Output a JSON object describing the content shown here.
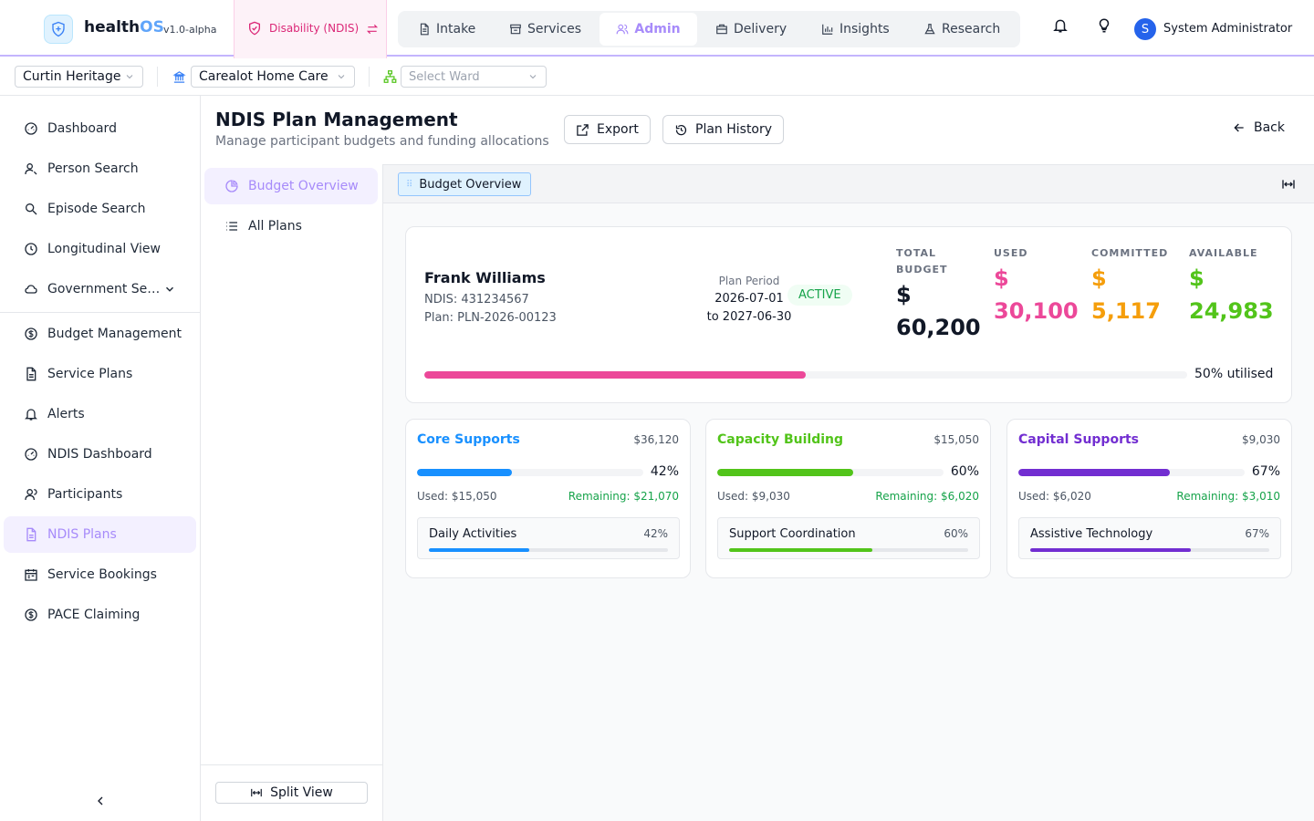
{
  "brand": {
    "name_prefix": "health",
    "name_suffix": "OS",
    "version": "v1.0-alpha"
  },
  "mode": {
    "label": "Disability (NDIS)",
    "switch_icon": "swap-icon"
  },
  "nav": {
    "tabs": [
      {
        "label": "Intake",
        "icon": "document-icon"
      },
      {
        "label": "Services",
        "icon": "store-icon"
      },
      {
        "label": "Admin",
        "icon": "users-icon",
        "active": true
      },
      {
        "label": "Delivery",
        "icon": "briefcase-icon"
      },
      {
        "label": "Insights",
        "icon": "bar-chart-icon"
      },
      {
        "label": "Research",
        "icon": "flask-icon"
      }
    ]
  },
  "user": {
    "initial": "S",
    "name": "System Administrator"
  },
  "context": {
    "organisation": "Curtin Heritage",
    "facility": "Carealot Home Care",
    "ward_placeholder": "Select Ward"
  },
  "sidebar": {
    "items": [
      {
        "label": "Dashboard",
        "icon": "gauge-icon"
      },
      {
        "label": "Person Search",
        "icon": "person-search-icon"
      },
      {
        "label": "Episode Search",
        "icon": "search-icon"
      },
      {
        "label": "Longitudinal View",
        "icon": "clock-icon"
      },
      {
        "label": "Government Services",
        "icon": "cloud-icon",
        "expandable": true
      },
      {
        "label": "Budget Management",
        "icon": "dollar-icon"
      },
      {
        "label": "Service Plans",
        "icon": "file-icon"
      },
      {
        "label": "Alerts",
        "icon": "bell-icon"
      },
      {
        "label": "NDIS Dashboard",
        "icon": "gauge-icon"
      },
      {
        "label": "Participants",
        "icon": "users-icon"
      },
      {
        "label": "NDIS Plans",
        "icon": "file-icon",
        "active": true
      },
      {
        "label": "Service Bookings",
        "icon": "calendar-icon"
      },
      {
        "label": "PACE Claiming",
        "icon": "dollar-icon"
      }
    ]
  },
  "subnav": {
    "items": [
      {
        "label": "Budget Overview",
        "icon": "pie-chart-icon",
        "active": true
      },
      {
        "label": "All Plans",
        "icon": "list-icon"
      }
    ],
    "split_view_label": "Split View"
  },
  "page": {
    "title": "NDIS Plan Management",
    "subtitle": "Manage participant budgets and funding allocations",
    "export_label": "Export",
    "history_label": "Plan History",
    "back_label": "Back"
  },
  "workspace": {
    "tab_label": "Budget Overview"
  },
  "participant": {
    "name": "Frank Williams",
    "ndis": "NDIS: 431234567",
    "plan": "Plan: PLN-2026-00123",
    "period_label": "Plan Period",
    "period_start": "2026-07-01",
    "period_end": "to 2027-06-30",
    "status": "ACTIVE",
    "stats": [
      {
        "label_line1": "TOTAL",
        "label_line2": "BUDGET",
        "currency": "$",
        "value": "60,200",
        "color": "#111827"
      },
      {
        "label_line1": "USED",
        "label_line2": "",
        "currency": "$",
        "value": "30,100",
        "color": "#ec4899"
      },
      {
        "label_line1": "COMMITTED",
        "label_line2": "",
        "currency": "$",
        "value": "5,117",
        "color": "#f59e0b"
      },
      {
        "label_line1": "AVAILABLE",
        "label_line2": "",
        "currency": "$",
        "value": "24,983",
        "color": "#52c41a"
      }
    ],
    "utilisation_pct": 50,
    "utilisation_label": "50% utilised"
  },
  "categories": [
    {
      "title": "Core Supports",
      "color": "#1890ff",
      "amount": "$36,120",
      "pct": 42,
      "pct_label": "42%",
      "used": "Used: $15,050",
      "remaining": "Remaining: $21,070",
      "sub": {
        "name": "Daily Activities",
        "pct": 42,
        "pct_label": "42%"
      }
    },
    {
      "title": "Capacity Building",
      "color": "#52c41a",
      "amount": "$15,050",
      "pct": 60,
      "pct_label": "60%",
      "used": "Used: $9,030",
      "remaining": "Remaining: $6,020",
      "sub": {
        "name": "Support Coordination",
        "pct": 60,
        "pct_label": "60%"
      }
    },
    {
      "title": "Capital Supports",
      "color": "#722ed1",
      "amount": "$9,030",
      "pct": 67,
      "pct_label": "67%",
      "used": "Used: $6,020",
      "remaining": "Remaining: $3,010",
      "sub": {
        "name": "Assistive Technology",
        "pct": 67,
        "pct_label": "67%"
      }
    }
  ]
}
